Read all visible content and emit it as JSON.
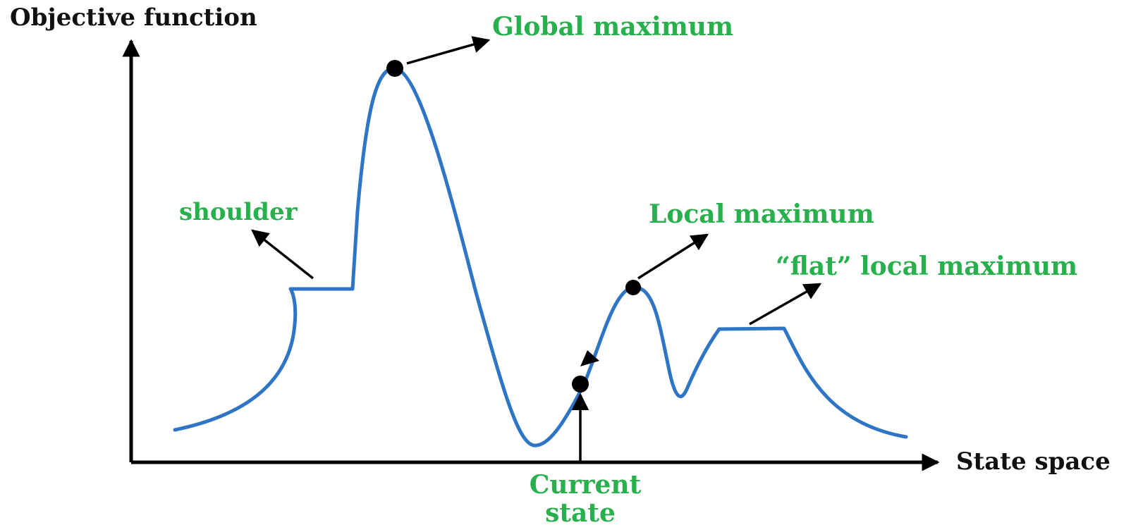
{
  "axes": {
    "y_label": "Objective function",
    "x_label": "State space"
  },
  "annotations": {
    "global_maximum": "Global maximum",
    "shoulder": "shoulder",
    "local_maximum": "Local maximum",
    "flat_local_maximum": "“flat” local maximum",
    "current_state_line1": "Current",
    "current_state_line2": "state"
  },
  "colors": {
    "curve": "#2e75c6",
    "annotation_text": "#27b04b",
    "axis": "#000000",
    "arrow": "#000000"
  }
}
